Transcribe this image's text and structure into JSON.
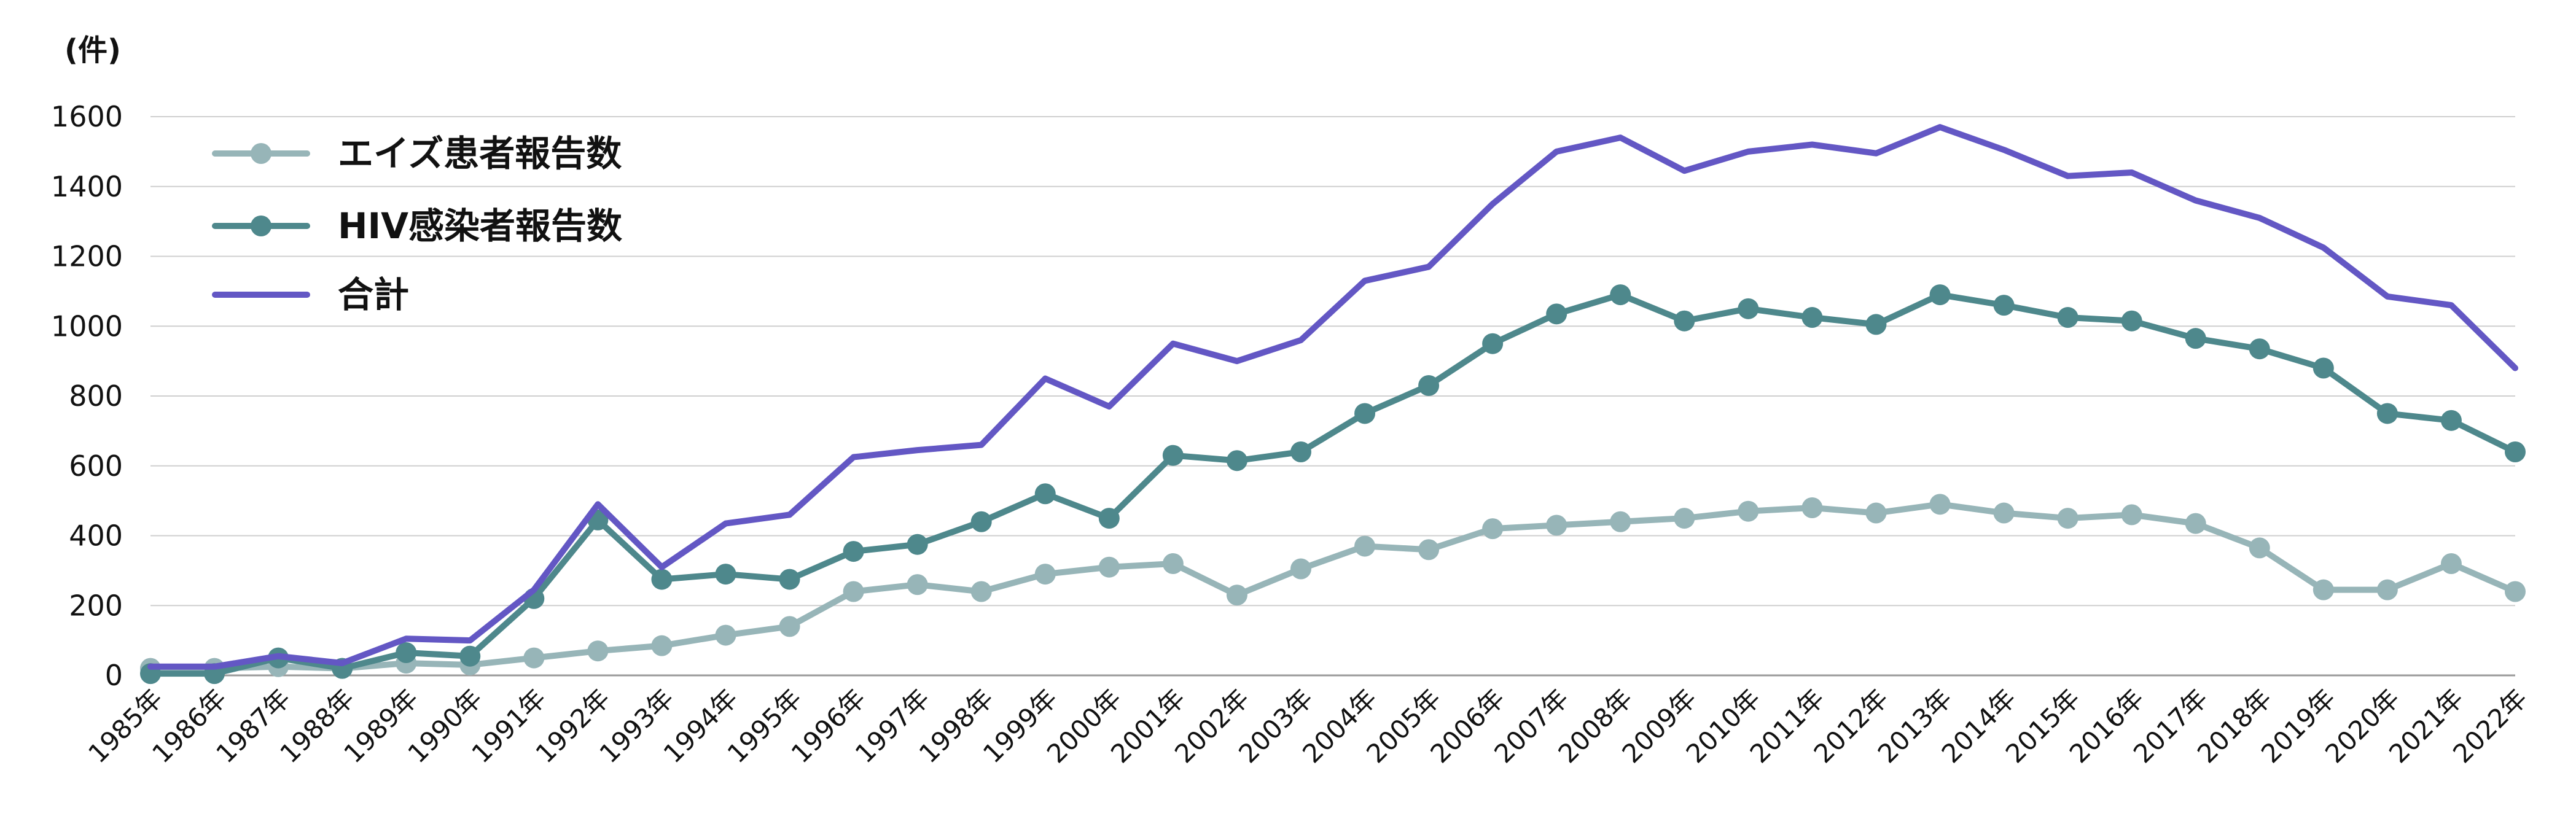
{
  "chart_data": {
    "type": "line",
    "unit_label": "(件)",
    "categories": [
      "1985年",
      "1986年",
      "1987年",
      "1988年",
      "1989年",
      "1990年",
      "1991年",
      "1992年",
      "1993年",
      "1994年",
      "1995年",
      "1996年",
      "1997年",
      "1998年",
      "1999年",
      "2000年",
      "2001年",
      "2002年",
      "2003年",
      "2004年",
      "2005年",
      "2006年",
      "2007年",
      "2008年",
      "2009年",
      "2010年",
      "2011年",
      "2012年",
      "2013年",
      "2014年",
      "2015年",
      "2016年",
      "2017年",
      "2018年",
      "2019年",
      "2020年",
      "2021年",
      "2022年"
    ],
    "ylim": [
      0,
      1600
    ],
    "yticks": [
      0,
      200,
      400,
      600,
      800,
      1000,
      1200,
      1400,
      1600
    ],
    "grid": true,
    "legend_position": "top-left",
    "series": [
      {
        "name": "エイズ患者報告数",
        "color": "#97b5b8",
        "marker": "circle",
        "values": [
          20,
          20,
          25,
          20,
          35,
          30,
          50,
          70,
          85,
          115,
          140,
          240,
          260,
          240,
          290,
          310,
          320,
          230,
          305,
          370,
          360,
          420,
          430,
          440,
          450,
          470,
          480,
          465,
          490,
          465,
          450,
          460,
          435,
          365,
          245,
          245,
          320,
          240
        ]
      },
      {
        "name": "HIV感染者報告数",
        "color": "#4e888c",
        "marker": "circle",
        "values": [
          5,
          5,
          50,
          20,
          65,
          55,
          220,
          445,
          275,
          290,
          275,
          355,
          375,
          440,
          520,
          450,
          630,
          615,
          640,
          750,
          830,
          950,
          1035,
          1090,
          1015,
          1050,
          1025,
          1005,
          1090,
          1060,
          1025,
          1015,
          965,
          935,
          880,
          750,
          730,
          640
        ]
      },
      {
        "name": "合計",
        "color": "#6357c4",
        "marker": "none",
        "values": [
          25,
          25,
          55,
          35,
          105,
          100,
          245,
          490,
          310,
          435,
          460,
          625,
          645,
          660,
          850,
          770,
          950,
          900,
          960,
          1130,
          1170,
          1350,
          1500,
          1540,
          1445,
          1500,
          1520,
          1495,
          1570,
          1505,
          1430,
          1440,
          1360,
          1310,
          1225,
          1085,
          1060,
          880
        ]
      }
    ]
  }
}
